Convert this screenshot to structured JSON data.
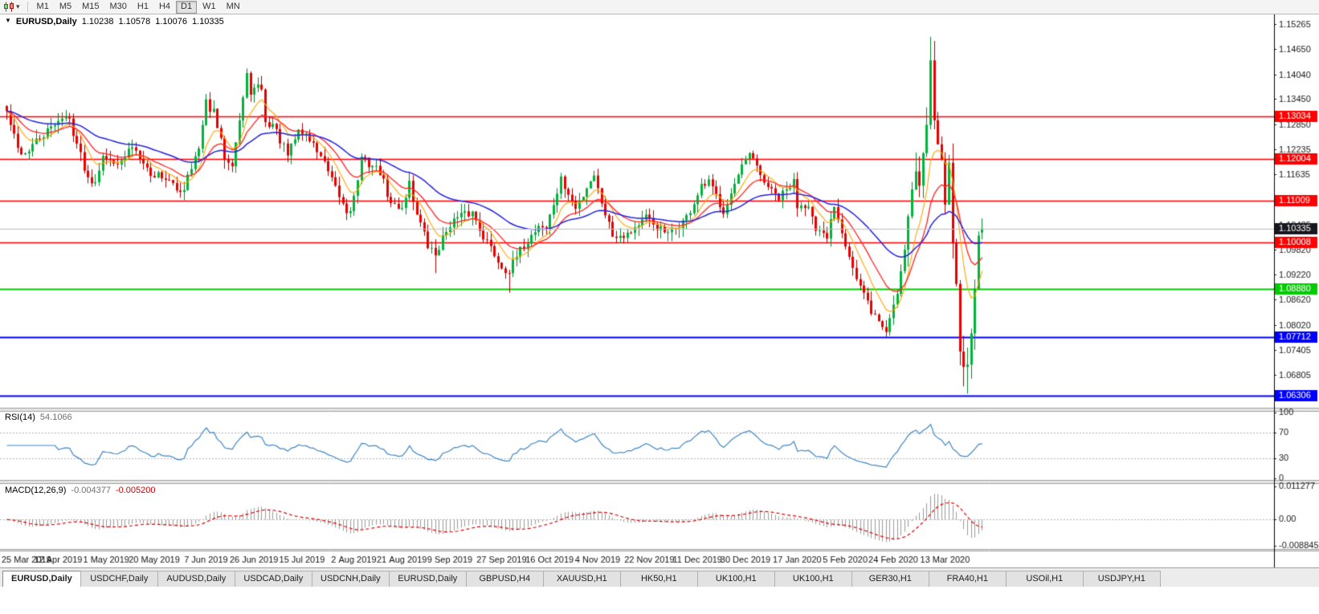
{
  "toolbar": {
    "chart_type_icon": "candlestick-chart-icon",
    "dropdown_caret": "▾",
    "timeframes": [
      "M1",
      "M5",
      "M15",
      "M30",
      "H1",
      "H4",
      "D1",
      "W1",
      "MN"
    ],
    "active_timeframe": "D1"
  },
  "chart_header": {
    "dropdown_icon": "▼",
    "symbol": "EURUSD,Daily",
    "open": "1.10238",
    "high": "1.10578",
    "low": "1.10076",
    "close": "1.10335"
  },
  "rsi_panel": {
    "name": "RSI(14)",
    "value": "54.1066"
  },
  "macd_panel": {
    "name": "MACD(12,26,9)",
    "value_main": "-0.004377",
    "value_signal": "-0.005200"
  },
  "chart_data": {
    "type": "candlestick",
    "symbol": "EURUSD",
    "timeframe": "Daily",
    "num_candles": 265,
    "seed": 42,
    "noise_base": 0.0011,
    "noise_volatile": 0.0016,
    "wick_base": 0.0022,
    "wick_volatile": 0.0048,
    "volatile_from": 244,
    "close_anchors": [
      [
        0,
        1.1314
      ],
      [
        3,
        1.1224
      ],
      [
        5,
        1.1214
      ],
      [
        7,
        1.1234
      ],
      [
        12,
        1.1274
      ],
      [
        14,
        1.1299
      ],
      [
        17,
        1.1296
      ],
      [
        20,
        1.121
      ],
      [
        22,
        1.1155
      ],
      [
        24,
        1.115
      ],
      [
        26,
        1.1215
      ],
      [
        27,
        1.1195
      ],
      [
        29,
        1.12
      ],
      [
        31,
        1.119
      ],
      [
        34,
        1.1233
      ],
      [
        37,
        1.12
      ],
      [
        39,
        1.1158
      ],
      [
        41,
        1.1166
      ],
      [
        43,
        1.1155
      ],
      [
        46,
        1.1125
      ],
      [
        48,
        1.1131
      ],
      [
        49,
        1.1168
      ],
      [
        52,
        1.1222
      ],
      [
        54,
        1.1335
      ],
      [
        56,
        1.1312
      ],
      [
        59,
        1.1207
      ],
      [
        61,
        1.1194
      ],
      [
        63,
        1.1294
      ],
      [
        65,
        1.1399
      ],
      [
        66,
        1.1365
      ],
      [
        69,
        1.1373
      ],
      [
        70,
        1.1285
      ],
      [
        72,
        1.1285
      ],
      [
        76,
        1.1208
      ],
      [
        79,
        1.127
      ],
      [
        81,
        1.126
      ],
      [
        85,
        1.1209
      ],
      [
        88,
        1.1146
      ],
      [
        92,
        1.1075
      ],
      [
        93,
        1.1084
      ],
      [
        94,
        1.1108
      ],
      [
        96,
        1.12
      ],
      [
        99,
        1.1185
      ],
      [
        101,
        1.117
      ],
      [
        104,
        1.109
      ],
      [
        107,
        1.1085
      ],
      [
        109,
        1.1145
      ],
      [
        110,
        1.1101
      ],
      [
        114,
        1.099
      ],
      [
        116,
        1.0971
      ],
      [
        120,
        1.1047
      ],
      [
        123,
        1.1063
      ],
      [
        126,
        1.1072
      ],
      [
        129,
        1.1017
      ],
      [
        134,
        1.0941
      ],
      [
        136,
        1.0932
      ],
      [
        139,
        1.0979
      ],
      [
        144,
        1.1042
      ],
      [
        146,
        1.1034
      ],
      [
        150,
        1.115
      ],
      [
        154,
        1.108
      ],
      [
        158,
        1.1152
      ],
      [
        159,
        1.1165
      ],
      [
        160,
        1.1127
      ],
      [
        164,
        1.1018
      ],
      [
        168,
        1.1022
      ],
      [
        173,
        1.1058
      ],
      [
        179,
        1.1017
      ],
      [
        184,
        1.1059
      ],
      [
        188,
        1.113
      ],
      [
        190,
        1.1144
      ],
      [
        194,
        1.1078
      ],
      [
        199,
        1.1177
      ],
      [
        201,
        1.1212
      ],
      [
        204,
        1.116
      ],
      [
        207,
        1.1122
      ],
      [
        209,
        1.1105
      ],
      [
        213,
        1.1145
      ],
      [
        214,
        1.109
      ],
      [
        217,
        1.1095
      ],
      [
        219,
        1.1023
      ],
      [
        222,
        1.101
      ],
      [
        224,
        1.1093
      ],
      [
        225,
        1.106
      ],
      [
        227,
        1.1
      ],
      [
        230,
        1.091
      ],
      [
        234,
        1.0835
      ],
      [
        238,
        1.0785
      ],
      [
        240,
        1.0852
      ],
      [
        241,
        1.088
      ],
      [
        243,
        1.099
      ],
      [
        245,
        1.1135
      ],
      [
        246,
        1.117
      ],
      [
        247,
        1.1135
      ],
      [
        249,
        1.1285
      ],
      [
        250,
        1.145
      ],
      [
        251,
        1.131
      ],
      [
        253,
        1.1185
      ],
      [
        254,
        1.1105
      ],
      [
        255,
        1.118
      ],
      [
        256,
        1.1
      ],
      [
        257,
        1.09
      ],
      [
        258,
        1.075
      ],
      [
        259,
        1.069
      ],
      [
        260,
        1.072
      ],
      [
        261,
        1.0785
      ],
      [
        262,
        1.0895
      ],
      [
        263,
        1.101
      ],
      [
        264,
        1.10335
      ]
    ],
    "forced_extremes": [
      {
        "index": 66,
        "high": 1.1412
      },
      {
        "index": 116,
        "low": 1.0926
      },
      {
        "index": 136,
        "low": 1.0879
      },
      {
        "index": 238,
        "low": 1.0778
      },
      {
        "index": 250,
        "high": 1.1495
      },
      {
        "index": 260,
        "low": 1.0636
      }
    ],
    "last_candle": [
      1.10238,
      1.10578,
      1.10076,
      1.10335
    ],
    "price_range": [
      1.0602,
      1.1545
    ],
    "y_ticks": [
      "1.15265",
      "1.14650",
      "1.14040",
      "1.13450",
      "1.12850",
      "1.12235",
      "1.11635",
      "1.10435",
      "1.09820",
      "1.09220",
      "1.08620",
      "1.08020",
      "1.07405",
      "1.06805"
    ],
    "levels": [
      {
        "price": 1.13034,
        "label": "1.13034",
        "color": "#ff0000",
        "width": 1.4
      },
      {
        "price": 1.12004,
        "label": "1.12004",
        "color": "#ff0000",
        "width": 1.4
      },
      {
        "price": 1.11009,
        "label": "1.11009",
        "color": "#ff0000",
        "width": 1.4
      },
      {
        "price": 1.10008,
        "label": "1.10008",
        "color": "#ff0000",
        "width": 1.4
      },
      {
        "price": 1.0888,
        "label": "1.08880",
        "color": "#00cc00",
        "width": 2
      },
      {
        "price": 1.07712,
        "label": "1.07712",
        "color": "#0000ff",
        "width": 2
      },
      {
        "price": 1.06306,
        "label": "1.06306",
        "color": "#0000ff",
        "width": 2
      }
    ],
    "bid": {
      "price": 1.10335,
      "label": "1.10335",
      "line_color": "#bdbdbd",
      "label_bg": "#17171f",
      "label_fg": "#ffffff"
    },
    "candle_colors": {
      "up_fill": "#00b23c",
      "up_stroke": "#00832c",
      "down_fill": "#e60000",
      "down_stroke": "#a80000"
    },
    "moving_averages": [
      {
        "period": 8,
        "color": "#ffa500",
        "width": 1.1
      },
      {
        "period": 16,
        "color": "#ff2222",
        "width": 1.3
      },
      {
        "period": 40,
        "color": "#2323e0",
        "width": 1.5
      }
    ],
    "x_axis": {
      "labels": [
        "25 Mar 2019",
        "12 Apr 2019",
        "1 May 2019",
        "20 May 2019",
        "7 Jun 2019",
        "26 Jun 2019",
        "15 Jul 2019",
        "2 Aug 2019",
        "21 Aug 2019",
        "9 Sep 2019",
        "27 Sep 2019",
        "16 Oct 2019",
        "4 Nov 2019",
        "22 Nov 2019",
        "11 Dec 2019",
        "30 Dec 2019",
        "17 Jan 2020",
        "5 Feb 2020",
        "24 Feb 2020",
        "13 Mar 2020"
      ],
      "indices": [
        0,
        14,
        27,
        40,
        54,
        67,
        80,
        94,
        107,
        120,
        134,
        147,
        160,
        174,
        187,
        200,
        214,
        227,
        240,
        254
      ]
    },
    "rsi": {
      "period": 14,
      "color": "#3f87c5",
      "levels": [
        70,
        30
      ],
      "axis_labels": [
        "100",
        "70",
        "30",
        "0"
      ],
      "range": [
        0,
        100
      ]
    },
    "macd": {
      "fast": 12,
      "slow": 26,
      "signal": 9,
      "histogram_color": "#9a9a9a",
      "signal_color": "#e00000",
      "range": [
        -0.008845,
        0.011277
      ],
      "axis_labels": [
        "0.011277",
        "0.00",
        "-0.008845"
      ]
    }
  },
  "tabs": [
    {
      "label": "EURUSD,Daily",
      "active": true
    },
    {
      "label": "USDCHF,Daily"
    },
    {
      "label": "AUDUSD,Daily"
    },
    {
      "label": "USDCAD,Daily"
    },
    {
      "label": "USDCNH,Daily"
    },
    {
      "label": "EURUSD,Daily"
    },
    {
      "label": "GBPUSD,H4"
    },
    {
      "label": "XAUUSD,H1"
    },
    {
      "label": "HK50,H1"
    },
    {
      "label": "UK100,H1"
    },
    {
      "label": "UK100,H1"
    },
    {
      "label": "GER30,H1"
    },
    {
      "label": "FRA40,H1"
    },
    {
      "label": "USOil,H1"
    },
    {
      "label": "USDJPY,H1"
    }
  ]
}
